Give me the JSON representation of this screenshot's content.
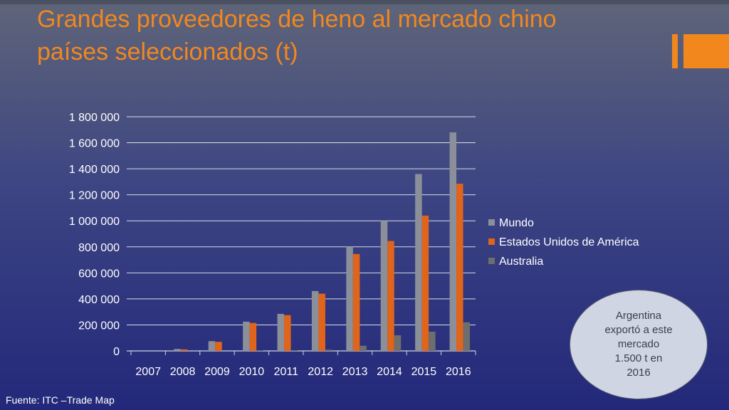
{
  "slide": {
    "title_line1": "Grandes proveedores de heno al mercado chino",
    "title_line2": "países seleccionados (t)",
    "note": "Argentina\nexportó a este\nmercado\n1.500 t en\n2016",
    "source": "Fuente: ITC –Trade Map",
    "accent_color": "#f2871e"
  },
  "chart_data": {
    "type": "bar",
    "categories": [
      "2007",
      "2008",
      "2009",
      "2010",
      "2011",
      "2012",
      "2013",
      "2014",
      "2015",
      "2016"
    ],
    "series": [
      {
        "name": "Mundo",
        "color": "#8a8f99",
        "values": [
          0,
          15000,
          75000,
          225000,
          285000,
          460000,
          800000,
          1000000,
          1360000,
          1680000
        ]
      },
      {
        "name": "Estados Unidos de América",
        "color": "#e0641a",
        "values": [
          0,
          12000,
          70000,
          215000,
          275000,
          440000,
          745000,
          845000,
          1040000,
          1285000
        ]
      },
      {
        "name": "Australia",
        "color": "#6e6e6e",
        "values": [
          0,
          0,
          0,
          3000,
          5000,
          10000,
          40000,
          120000,
          148000,
          220000
        ]
      }
    ],
    "ylim": [
      0,
      1800000
    ],
    "yticks": [
      "0",
      "200 000",
      "400 000",
      "600 000",
      "800 000",
      "1 000 000",
      "1 200 000",
      "1 400 000",
      "1 600 000",
      "1 800 000"
    ],
    "grid": true,
    "legend": "right",
    "xlabel": "",
    "ylabel": ""
  }
}
